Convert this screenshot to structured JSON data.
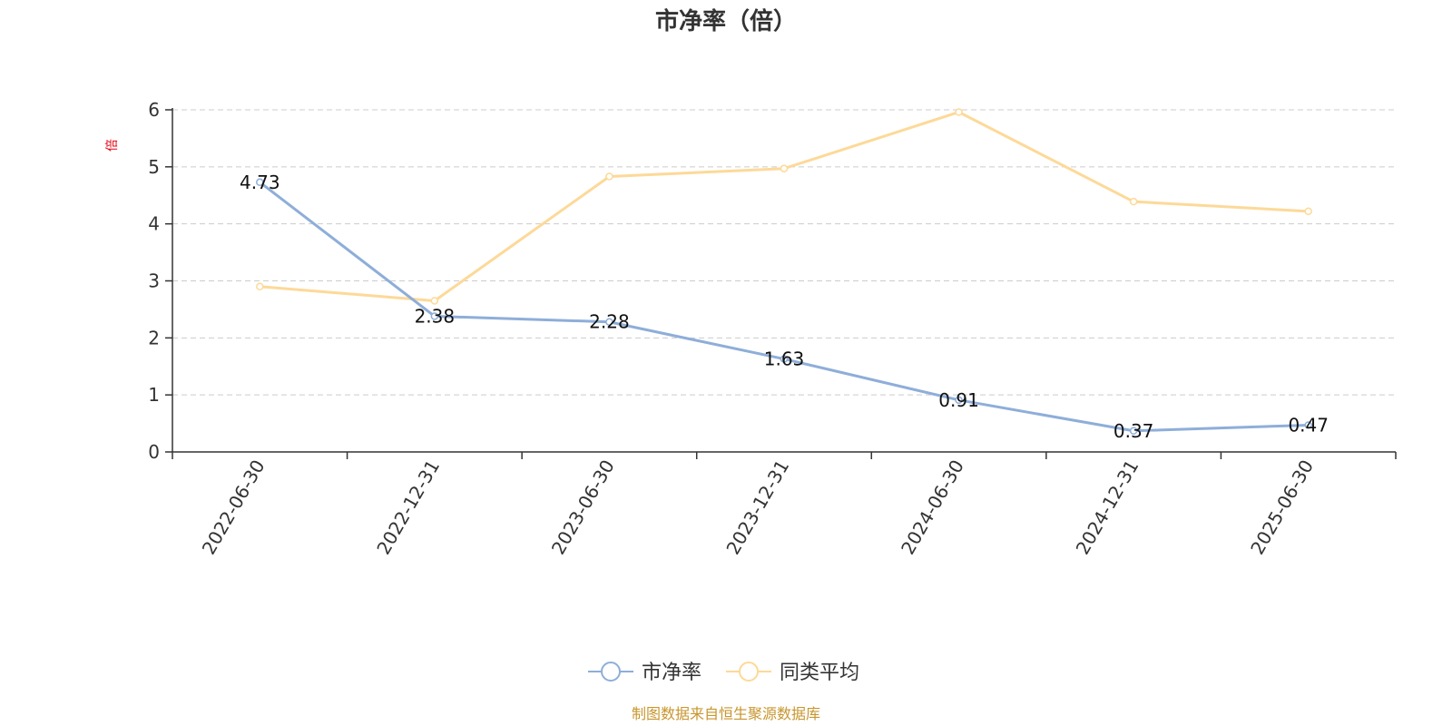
{
  "chart_data": {
    "type": "line",
    "title": "市净率（倍）",
    "ylabel": "倍",
    "xlabel": "",
    "ylim": [
      0,
      6
    ],
    "yticks": [
      "0",
      "1",
      "2",
      "3",
      "4",
      "5",
      "6"
    ],
    "categories": [
      "2022-06-30",
      "2022-12-31",
      "2023-06-30",
      "2023-12-31",
      "2024-06-30",
      "2024-12-31",
      "2025-06-30"
    ],
    "grid": true,
    "legend_position": "bottom",
    "series": [
      {
        "name": "市净率",
        "color": "#8eaed9",
        "values": [
          4.73,
          2.38,
          2.28,
          1.63,
          0.91,
          0.37,
          0.47
        ],
        "labels": [
          "4.73",
          "2.38",
          "2.28",
          "1.63",
          "0.91",
          "0.37",
          "0.47"
        ]
      },
      {
        "name": "同类平均",
        "color": "#fdd998",
        "values": [
          2.9,
          2.65,
          4.83,
          4.97,
          5.96,
          4.39,
          4.22
        ]
      }
    ]
  },
  "source_note": "制图数据来自恒生聚源数据库"
}
